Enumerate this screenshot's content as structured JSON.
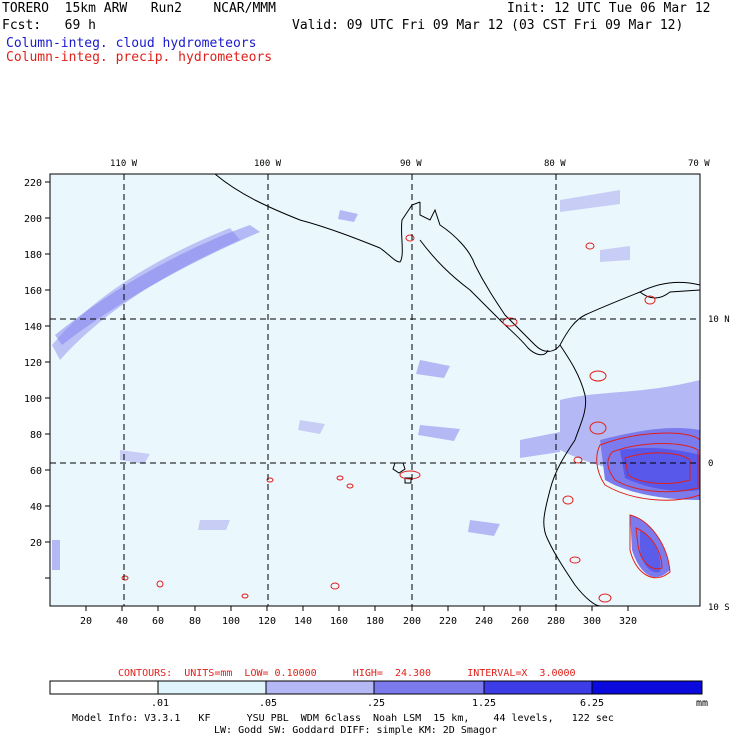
{
  "header": {
    "title_left": "TORERO  15km ARW   Run2    NCAR/MMM",
    "init": "Init: 12 UTC Tue 06 Mar 12",
    "fcst_label": "Fcst:   69 h",
    "valid": "Valid: 09 UTC Fri 09 Mar 12 (03 CST Fri 09 Mar 12)",
    "field1": "Column-integ. cloud hydrometeors",
    "field2": "Column-integ. precip. hydrometeors"
  },
  "colors": {
    "cloud_label": "#1a1acc",
    "precip_label": "#e0201a",
    "coast": "#000000",
    "contour": "#e0201a"
  },
  "map": {
    "lon_labels": [
      "110 W",
      "100 W",
      "90 W",
      "80 W",
      "70 W"
    ],
    "lat_labels": [
      "10 N",
      "0",
      "10 S"
    ],
    "x_ticks": [
      "20",
      "40",
      "60",
      "80",
      "100",
      "120",
      "140",
      "160",
      "180",
      "200",
      "220",
      "240",
      "260",
      "280",
      "300",
      "320"
    ],
    "y_ticks": [
      "220",
      "200",
      "180",
      "160",
      "140",
      "120",
      "100",
      "80",
      "60",
      "40",
      "20"
    ]
  },
  "contour_info": {
    "label": "CONTOURS:  UNITS=mm  LOW= 0.10000      HIGH=  24.300      INTERVAL=X  3.0000"
  },
  "legend": {
    "ticks": [
      ".01",
      ".05",
      ".25",
      "1.25",
      "6.25"
    ],
    "unit": "mm",
    "bins": [
      {
        "color": "#ffffff"
      },
      {
        "color": "#dff4fd"
      },
      {
        "color": "#b4b8f4"
      },
      {
        "color": "#7b7bee"
      },
      {
        "color": "#3d3de8"
      },
      {
        "color": "#0a0adf"
      }
    ]
  },
  "footer": {
    "line1": "Model Info: V3.3.1   KF      YSU PBL  WDM 6class  Noah LSM  15 km,    44 levels,   122 sec",
    "line2": "LW: Godd SW: Goddard DIFF: simple KM: 2D Smagor"
  }
}
